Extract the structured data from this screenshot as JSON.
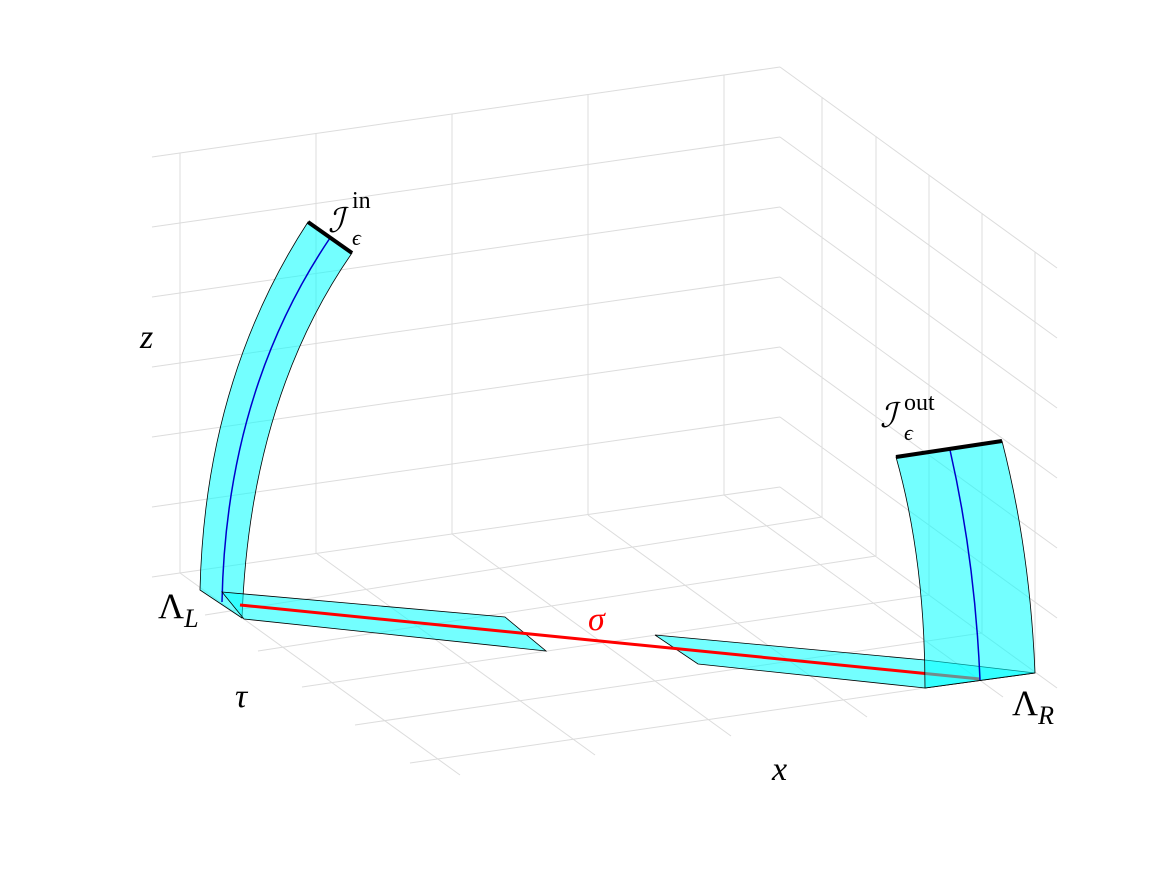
{
  "axes": {
    "x": "x",
    "y": "τ",
    "z": "z"
  },
  "labels": {
    "lambda_left": {
      "base": "Λ",
      "sub": "L"
    },
    "lambda_right": {
      "base": "Λ",
      "sub": "R"
    },
    "sigma": "σ",
    "entry": {
      "base": "ℐ",
      "sub": "ϵ",
      "sup": "in"
    },
    "exit": {
      "base": "ℐ",
      "sub": "ϵ",
      "sup": "out"
    }
  }
}
